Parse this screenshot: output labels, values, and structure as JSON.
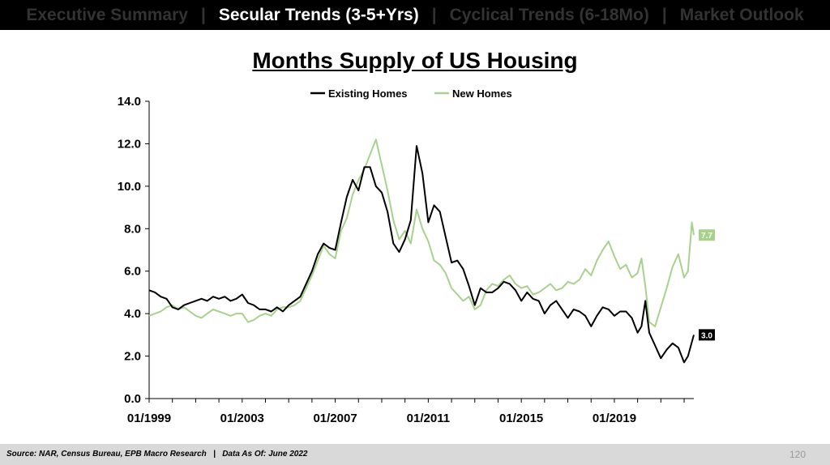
{
  "nav": {
    "items": [
      {
        "label": "Executive Summary",
        "active": false
      },
      {
        "label": "Secular Trends (3-5+Yrs)",
        "active": true
      },
      {
        "label": "Cyclical Trends (6-18Mo)",
        "active": false
      },
      {
        "label": "Market Outlook",
        "active": false
      }
    ],
    "separator": "|"
  },
  "footer": {
    "source": "Source: NAR, Census Bureau, EPB Macro Research   |   Data As Of: June 2022",
    "page_number": "120"
  },
  "colors": {
    "existing_homes": "#000000",
    "new_homes": "#a9d18e",
    "header_bg": "#000000",
    "footer_bg": "#d9d9d9"
  },
  "chart_data": {
    "type": "line",
    "title": "Months Supply of US Housing",
    "xlabel": "",
    "ylabel": "",
    "ylim": [
      0,
      14
    ],
    "yticks": [
      0,
      2,
      4,
      6,
      8,
      10,
      12,
      14
    ],
    "ytick_labels": [
      "0.0",
      "2.0",
      "4.0",
      "6.0",
      "8.0",
      "10.0",
      "12.0",
      "14.0"
    ],
    "xlim": [
      "1999-01",
      "2022-06"
    ],
    "xticks": [
      "1999-01",
      "2003-01",
      "2007-01",
      "2011-01",
      "2015-01",
      "2019-01"
    ],
    "xtick_labels": [
      "01/1999",
      "01/2003",
      "01/2007",
      "01/2011",
      "01/2015",
      "01/2019"
    ],
    "legend": "top-center",
    "grid": false,
    "series": [
      {
        "name": "Existing Homes",
        "end_label": "3.0",
        "points": [
          [
            "1999-01",
            5.1
          ],
          [
            "1999-04",
            5.0
          ],
          [
            "1999-07",
            4.8
          ],
          [
            "1999-10",
            4.7
          ],
          [
            "2000-01",
            4.3
          ],
          [
            "2000-04",
            4.2
          ],
          [
            "2000-07",
            4.4
          ],
          [
            "2000-10",
            4.5
          ],
          [
            "2001-01",
            4.6
          ],
          [
            "2001-04",
            4.7
          ],
          [
            "2001-07",
            4.6
          ],
          [
            "2001-10",
            4.8
          ],
          [
            "2002-01",
            4.7
          ],
          [
            "2002-04",
            4.8
          ],
          [
            "2002-07",
            4.6
          ],
          [
            "2002-10",
            4.7
          ],
          [
            "2003-01",
            4.9
          ],
          [
            "2003-04",
            4.5
          ],
          [
            "2003-07",
            4.4
          ],
          [
            "2003-10",
            4.2
          ],
          [
            "2004-01",
            4.2
          ],
          [
            "2004-04",
            4.1
          ],
          [
            "2004-07",
            4.3
          ],
          [
            "2004-10",
            4.1
          ],
          [
            "2005-01",
            4.4
          ],
          [
            "2005-04",
            4.6
          ],
          [
            "2005-07",
            4.8
          ],
          [
            "2005-10",
            5.4
          ],
          [
            "2006-01",
            6.0
          ],
          [
            "2006-04",
            6.8
          ],
          [
            "2006-07",
            7.3
          ],
          [
            "2006-10",
            7.1
          ],
          [
            "2007-01",
            7.0
          ],
          [
            "2007-04",
            8.3
          ],
          [
            "2007-07",
            9.5
          ],
          [
            "2007-10",
            10.3
          ],
          [
            "2008-01",
            9.8
          ],
          [
            "2008-04",
            10.9
          ],
          [
            "2008-07",
            10.9
          ],
          [
            "2008-10",
            10.0
          ],
          [
            "2009-01",
            9.7
          ],
          [
            "2009-04",
            8.8
          ],
          [
            "2009-07",
            7.3
          ],
          [
            "2009-10",
            6.9
          ],
          [
            "2010-01",
            7.5
          ],
          [
            "2010-04",
            8.4
          ],
          [
            "2010-07",
            11.9
          ],
          [
            "2010-10",
            10.6
          ],
          [
            "2011-01",
            8.3
          ],
          [
            "2011-04",
            9.1
          ],
          [
            "2011-07",
            8.8
          ],
          [
            "2011-10",
            7.6
          ],
          [
            "2012-01",
            6.4
          ],
          [
            "2012-04",
            6.5
          ],
          [
            "2012-07",
            6.1
          ],
          [
            "2012-10",
            5.3
          ],
          [
            "2013-01",
            4.4
          ],
          [
            "2013-04",
            5.2
          ],
          [
            "2013-07",
            5.0
          ],
          [
            "2013-10",
            5.0
          ],
          [
            "2014-01",
            5.2
          ],
          [
            "2014-04",
            5.5
          ],
          [
            "2014-07",
            5.4
          ],
          [
            "2014-10",
            5.1
          ],
          [
            "2015-01",
            4.6
          ],
          [
            "2015-04",
            5.0
          ],
          [
            "2015-07",
            4.7
          ],
          [
            "2015-10",
            4.6
          ],
          [
            "2016-01",
            4.0
          ],
          [
            "2016-04",
            4.4
          ],
          [
            "2016-07",
            4.6
          ],
          [
            "2016-10",
            4.2
          ],
          [
            "2017-01",
            3.8
          ],
          [
            "2017-04",
            4.2
          ],
          [
            "2017-07",
            4.1
          ],
          [
            "2017-10",
            3.9
          ],
          [
            "2018-01",
            3.4
          ],
          [
            "2018-04",
            3.9
          ],
          [
            "2018-07",
            4.3
          ],
          [
            "2018-10",
            4.2
          ],
          [
            "2019-01",
            3.9
          ],
          [
            "2019-04",
            4.1
          ],
          [
            "2019-07",
            4.1
          ],
          [
            "2019-10",
            3.8
          ],
          [
            "2020-01",
            3.1
          ],
          [
            "2020-03",
            3.4
          ],
          [
            "2020-05",
            4.6
          ],
          [
            "2020-07",
            3.1
          ],
          [
            "2020-10",
            2.5
          ],
          [
            "2021-01",
            1.9
          ],
          [
            "2021-04",
            2.3
          ],
          [
            "2021-07",
            2.6
          ],
          [
            "2021-10",
            2.4
          ],
          [
            "2022-01",
            1.7
          ],
          [
            "2022-03",
            2.0
          ],
          [
            "2022-06",
            3.0
          ]
        ]
      },
      {
        "name": "New Homes",
        "end_label": "7.7",
        "points": [
          [
            "1999-01",
            3.9
          ],
          [
            "1999-04",
            4.0
          ],
          [
            "1999-07",
            4.1
          ],
          [
            "1999-10",
            4.3
          ],
          [
            "2000-01",
            4.4
          ],
          [
            "2000-04",
            4.2
          ],
          [
            "2000-07",
            4.3
          ],
          [
            "2000-10",
            4.1
          ],
          [
            "2001-01",
            3.9
          ],
          [
            "2001-04",
            3.8
          ],
          [
            "2001-07",
            4.0
          ],
          [
            "2001-10",
            4.2
          ],
          [
            "2002-01",
            4.1
          ],
          [
            "2002-04",
            4.0
          ],
          [
            "2002-07",
            3.9
          ],
          [
            "2002-10",
            4.0
          ],
          [
            "2003-01",
            4.0
          ],
          [
            "2003-04",
            3.6
          ],
          [
            "2003-07",
            3.7
          ],
          [
            "2003-10",
            3.9
          ],
          [
            "2004-01",
            4.0
          ],
          [
            "2004-04",
            3.9
          ],
          [
            "2004-07",
            4.2
          ],
          [
            "2004-10",
            4.3
          ],
          [
            "2005-01",
            4.3
          ],
          [
            "2005-04",
            4.4
          ],
          [
            "2005-07",
            4.6
          ],
          [
            "2005-10",
            5.2
          ],
          [
            "2006-01",
            5.8
          ],
          [
            "2006-04",
            6.5
          ],
          [
            "2006-07",
            7.2
          ],
          [
            "2006-10",
            6.8
          ],
          [
            "2007-01",
            6.6
          ],
          [
            "2007-04",
            7.9
          ],
          [
            "2007-07",
            8.5
          ],
          [
            "2007-10",
            9.6
          ],
          [
            "2008-01",
            10.3
          ],
          [
            "2008-04",
            10.8
          ],
          [
            "2008-07",
            11.5
          ],
          [
            "2008-10",
            12.2
          ],
          [
            "2009-01",
            11.0
          ],
          [
            "2009-04",
            9.8
          ],
          [
            "2009-07",
            8.4
          ],
          [
            "2009-10",
            7.5
          ],
          [
            "2010-01",
            7.9
          ],
          [
            "2010-04",
            7.3
          ],
          [
            "2010-07",
            8.9
          ],
          [
            "2010-10",
            8.0
          ],
          [
            "2011-01",
            7.4
          ],
          [
            "2011-04",
            6.5
          ],
          [
            "2011-07",
            6.3
          ],
          [
            "2011-10",
            5.9
          ],
          [
            "2012-01",
            5.2
          ],
          [
            "2012-04",
            4.9
          ],
          [
            "2012-07",
            4.6
          ],
          [
            "2012-10",
            4.8
          ],
          [
            "2013-01",
            4.2
          ],
          [
            "2013-04",
            4.4
          ],
          [
            "2013-07",
            5.1
          ],
          [
            "2013-10",
            5.4
          ],
          [
            "2014-01",
            5.3
          ],
          [
            "2014-04",
            5.6
          ],
          [
            "2014-07",
            5.8
          ],
          [
            "2014-10",
            5.4
          ],
          [
            "2015-01",
            5.2
          ],
          [
            "2015-04",
            5.3
          ],
          [
            "2015-07",
            4.9
          ],
          [
            "2015-10",
            5.0
          ],
          [
            "2016-01",
            5.2
          ],
          [
            "2016-04",
            5.4
          ],
          [
            "2016-07",
            5.1
          ],
          [
            "2016-10",
            5.2
          ],
          [
            "2017-01",
            5.5
          ],
          [
            "2017-04",
            5.4
          ],
          [
            "2017-07",
            5.6
          ],
          [
            "2017-10",
            6.1
          ],
          [
            "2018-01",
            5.8
          ],
          [
            "2018-04",
            6.5
          ],
          [
            "2018-07",
            7.0
          ],
          [
            "2018-10",
            7.4
          ],
          [
            "2019-01",
            6.7
          ],
          [
            "2019-04",
            6.1
          ],
          [
            "2019-07",
            6.3
          ],
          [
            "2019-10",
            5.7
          ],
          [
            "2020-01",
            5.9
          ],
          [
            "2020-03",
            6.6
          ],
          [
            "2020-05",
            5.3
          ],
          [
            "2020-07",
            3.6
          ],
          [
            "2020-10",
            3.4
          ],
          [
            "2021-01",
            4.3
          ],
          [
            "2021-04",
            5.2
          ],
          [
            "2021-07",
            6.2
          ],
          [
            "2021-10",
            6.8
          ],
          [
            "2022-01",
            5.7
          ],
          [
            "2022-03",
            6.0
          ],
          [
            "2022-05",
            8.3
          ],
          [
            "2022-06",
            7.7
          ]
        ]
      }
    ]
  }
}
